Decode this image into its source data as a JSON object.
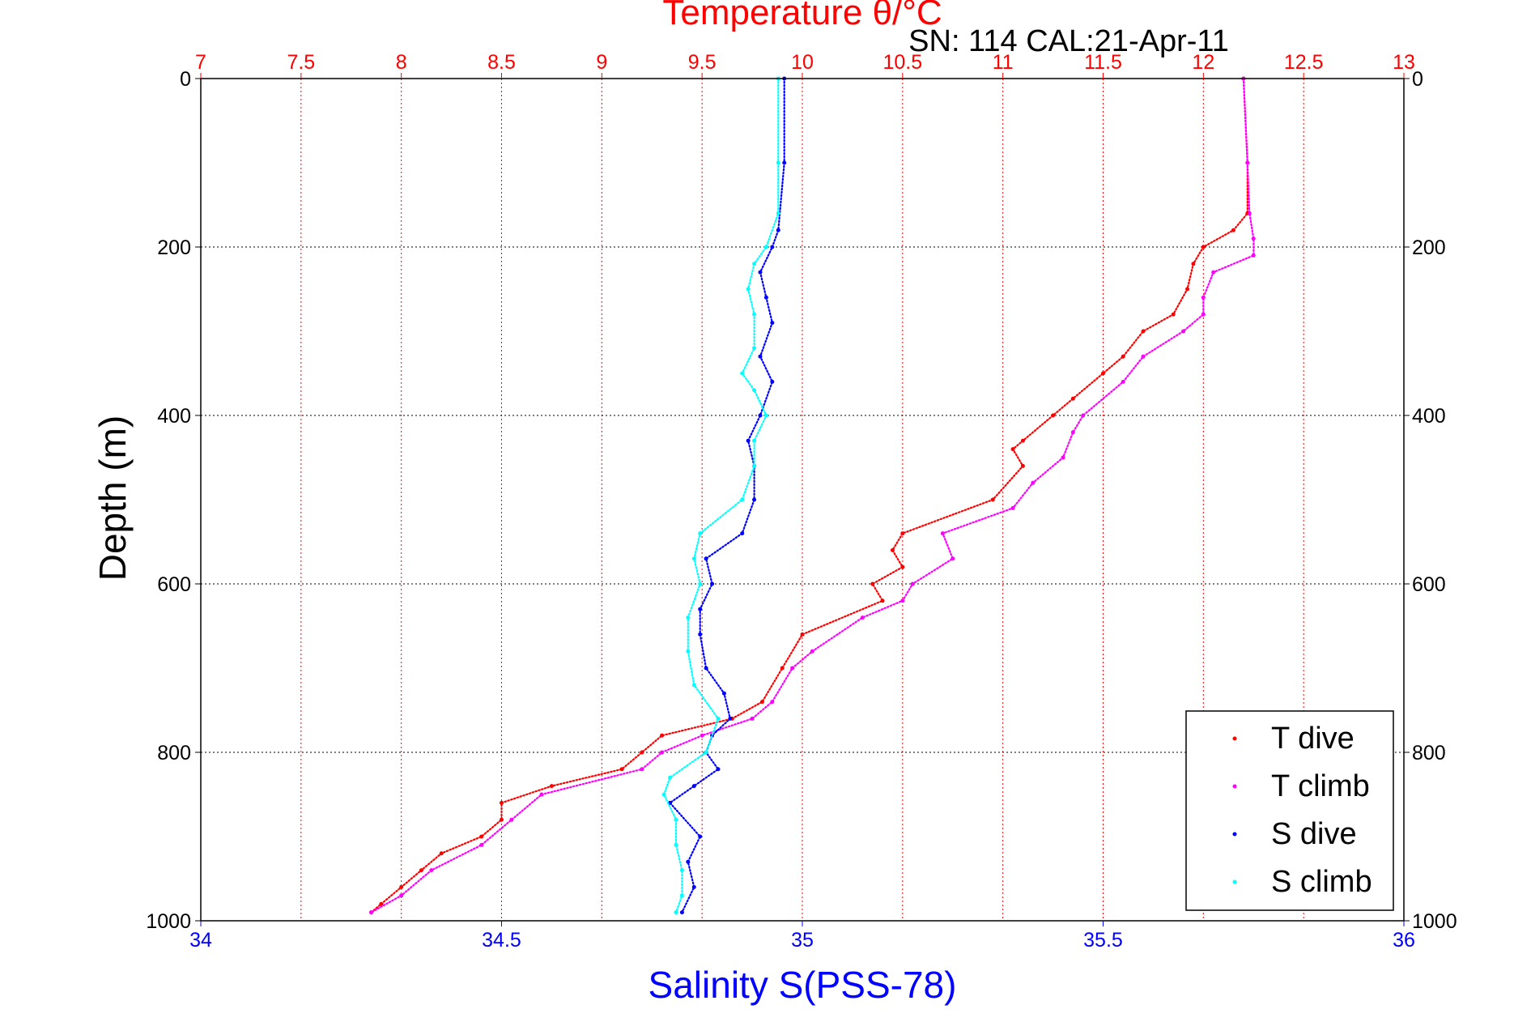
{
  "chart_data": {
    "type": "scatter",
    "title": "Temperature θ/°C",
    "subtitle": "SN: 114  CAL:21-Apr-11",
    "xlabel": "Salinity S(PSS-78)",
    "ylabel": "Depth (m)",
    "x_top": {
      "label": "Temperature θ/°C",
      "lim": [
        7,
        13
      ],
      "ticks": [
        "7",
        "7.5",
        "8",
        "8.5",
        "9",
        "9.5",
        "10",
        "10.5",
        "11",
        "11.5",
        "12",
        "12.5",
        "13"
      ],
      "color": "#ff0000"
    },
    "x_bottom": {
      "label": "Salinity S(PSS-78)",
      "lim": [
        34,
        36
      ],
      "ticks": [
        "34",
        "34.5",
        "35",
        "35.5",
        "36"
      ],
      "color": "#0000ff"
    },
    "y": {
      "lim": [
        0,
        1000
      ],
      "reversed": true,
      "ticks": [
        "0",
        "200",
        "400",
        "600",
        "800",
        "1000"
      ]
    },
    "grid": true,
    "legend_position": "bottom-right",
    "series": [
      {
        "name": "T dive",
        "axis": "top",
        "color": "#ff0000",
        "depth": [
          0,
          100,
          160,
          180,
          200,
          220,
          250,
          280,
          300,
          330,
          350,
          380,
          400,
          430,
          440,
          460,
          500,
          540,
          560,
          580,
          600,
          620,
          660,
          700,
          740,
          760,
          780,
          800,
          820,
          840,
          860,
          880,
          900,
          920,
          940,
          960,
          980,
          990
        ],
        "value": [
          12.2,
          12.22,
          12.22,
          12.15,
          12.0,
          11.95,
          11.92,
          11.85,
          11.7,
          11.6,
          11.5,
          11.35,
          11.25,
          11.1,
          11.05,
          11.1,
          10.95,
          10.5,
          10.45,
          10.5,
          10.35,
          10.4,
          10.0,
          9.9,
          9.8,
          9.65,
          9.3,
          9.2,
          9.1,
          8.75,
          8.5,
          8.5,
          8.4,
          8.2,
          8.1,
          8.0,
          7.9,
          7.85
        ]
      },
      {
        "name": "T climb",
        "axis": "top",
        "color": "#ff00ff",
        "depth": [
          0,
          100,
          160,
          190,
          210,
          230,
          260,
          280,
          300,
          330,
          360,
          400,
          420,
          450,
          480,
          510,
          540,
          570,
          600,
          620,
          640,
          680,
          700,
          740,
          760,
          780,
          800,
          820,
          850,
          880,
          910,
          940,
          970,
          990
        ],
        "value": [
          12.2,
          12.22,
          12.23,
          12.25,
          12.25,
          12.05,
          12.0,
          12.0,
          11.9,
          11.7,
          11.6,
          11.4,
          11.35,
          11.3,
          11.15,
          11.05,
          10.7,
          10.75,
          10.55,
          10.5,
          10.3,
          10.05,
          9.95,
          9.85,
          9.75,
          9.5,
          9.3,
          9.2,
          8.7,
          8.55,
          8.4,
          8.15,
          8.0,
          7.85
        ]
      },
      {
        "name": "S dive",
        "axis": "bottom",
        "color": "#0000ff",
        "depth": [
          0,
          100,
          180,
          200,
          230,
          260,
          290,
          330,
          360,
          400,
          430,
          460,
          500,
          540,
          570,
          600,
          630,
          660,
          700,
          730,
          760,
          780,
          800,
          820,
          840,
          860,
          900,
          930,
          960,
          990
        ],
        "value": [
          34.97,
          34.97,
          34.96,
          34.95,
          34.93,
          34.94,
          34.95,
          34.93,
          34.95,
          34.93,
          34.91,
          34.92,
          34.92,
          34.9,
          34.84,
          34.85,
          34.83,
          34.83,
          34.84,
          34.87,
          34.88,
          34.85,
          34.84,
          34.86,
          34.82,
          34.78,
          34.83,
          34.81,
          34.82,
          34.8
        ]
      },
      {
        "name": "S climb",
        "axis": "bottom",
        "color": "#00ffff",
        "depth": [
          0,
          100,
          160,
          200,
          220,
          250,
          280,
          320,
          350,
          370,
          400,
          430,
          460,
          500,
          540,
          570,
          600,
          640,
          680,
          720,
          760,
          800,
          830,
          850,
          880,
          910,
          940,
          970,
          990
        ],
        "value": [
          34.96,
          34.96,
          34.96,
          34.94,
          34.92,
          34.91,
          34.92,
          34.92,
          34.9,
          34.92,
          34.94,
          34.92,
          34.92,
          34.9,
          34.83,
          34.82,
          34.83,
          34.81,
          34.81,
          34.82,
          34.86,
          34.84,
          34.78,
          34.77,
          34.79,
          34.79,
          34.8,
          34.8,
          34.79
        ]
      }
    ]
  }
}
